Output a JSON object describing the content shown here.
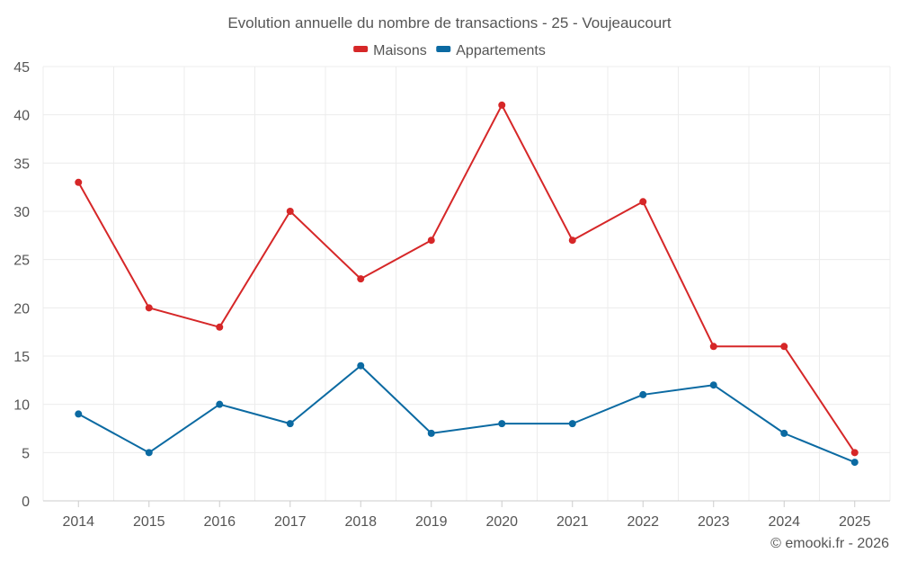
{
  "chart_data": {
    "type": "line",
    "title": "Evolution annuelle du nombre de transactions - 25 - Voujeaucourt",
    "xlabel": "",
    "ylabel": "",
    "ylim": [
      0,
      45
    ],
    "ytick_step": 5,
    "grid": true,
    "legend_position": "top-center",
    "categories": [
      "2014",
      "2015",
      "2016",
      "2017",
      "2018",
      "2019",
      "2020",
      "2021",
      "2022",
      "2023",
      "2024",
      "2025"
    ],
    "series": [
      {
        "name": "Maisons",
        "color": "#d62728",
        "values": [
          33,
          20,
          18,
          30,
          23,
          27,
          41,
          27,
          31,
          16,
          16,
          5
        ]
      },
      {
        "name": "Appartements",
        "color": "#0b6aa2",
        "values": [
          9,
          5,
          10,
          8,
          14,
          7,
          8,
          8,
          11,
          12,
          7,
          4
        ]
      }
    ],
    "credit": "© emooki.fr - 2026"
  }
}
